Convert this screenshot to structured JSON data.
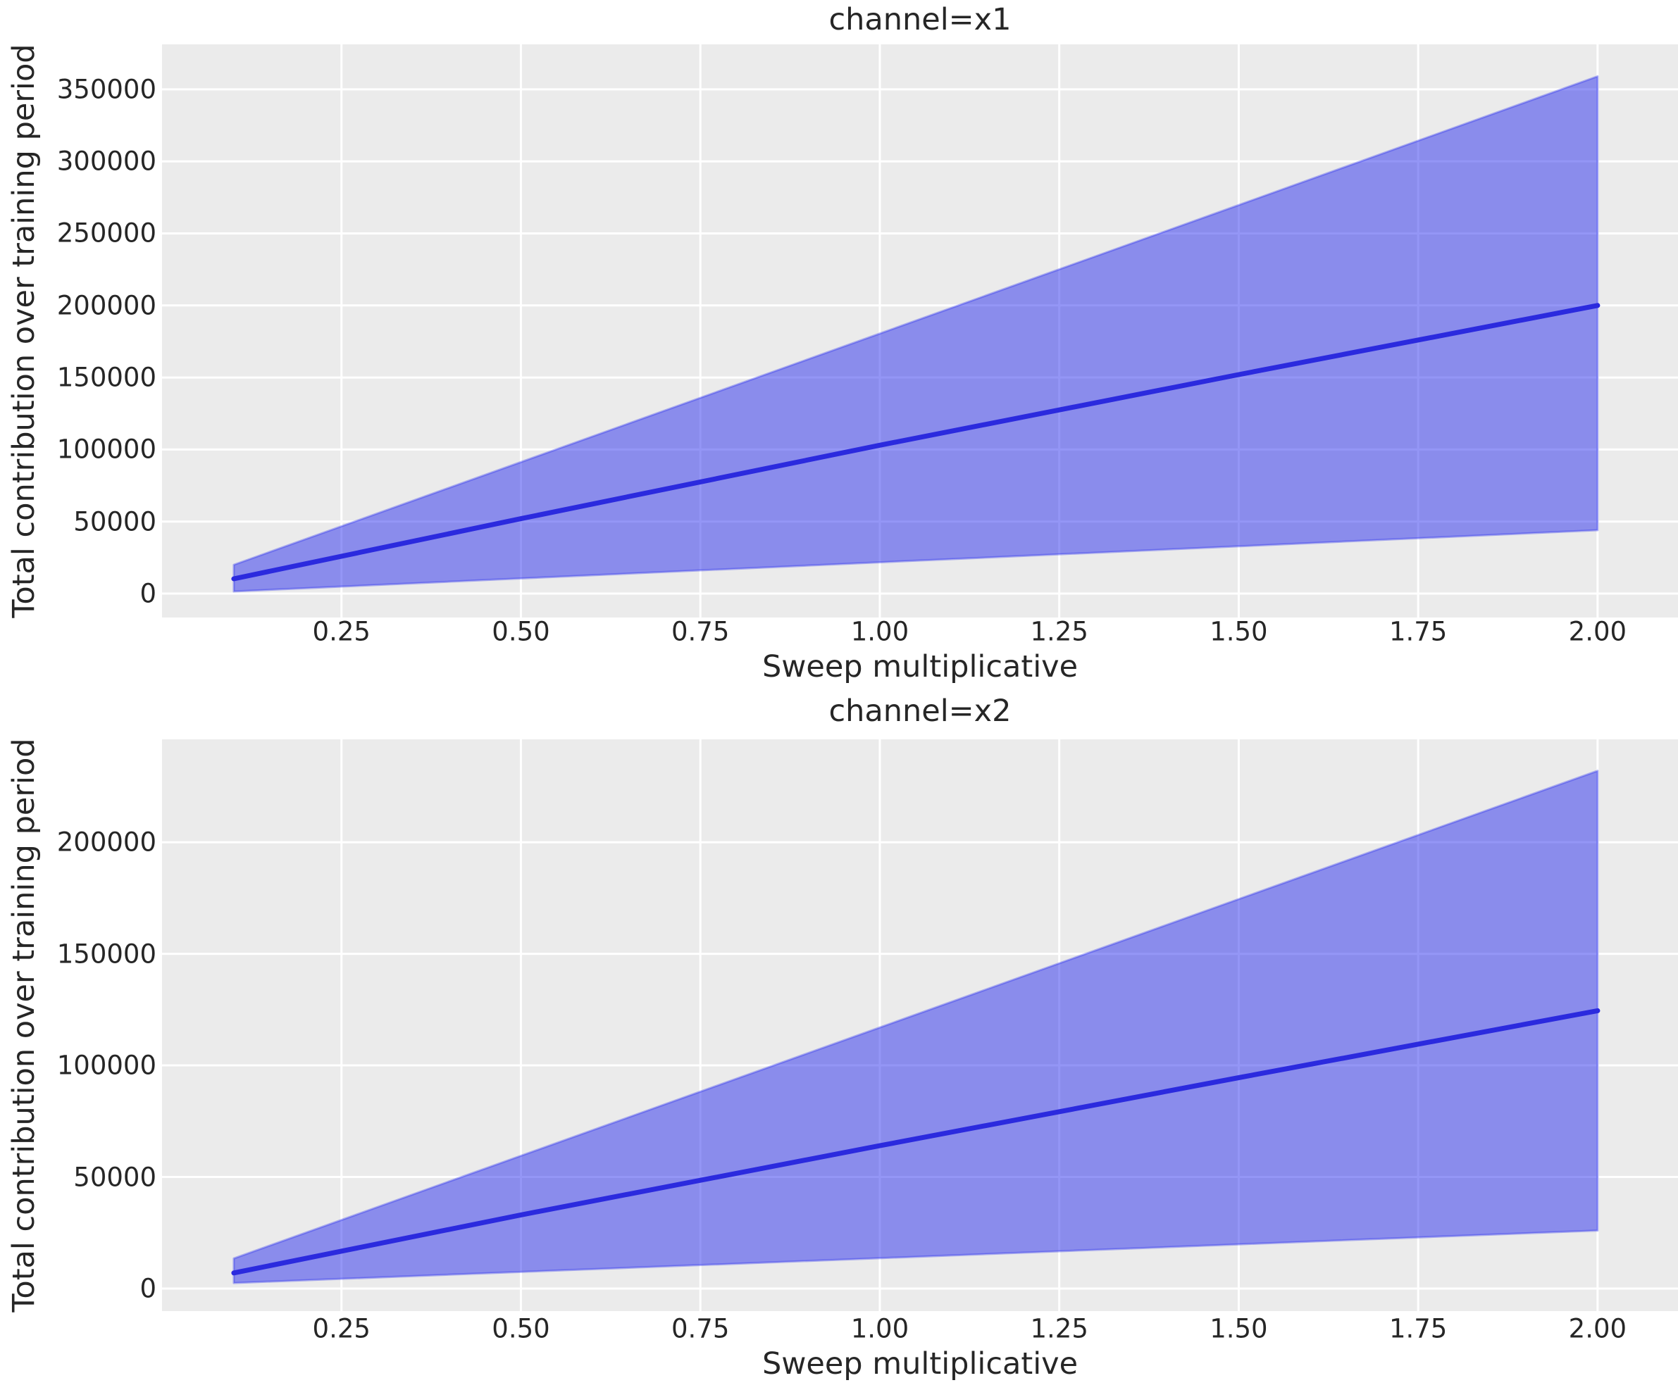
{
  "colors": {
    "figure_background": "#ffffff",
    "axes_background": "#ebebeb",
    "grid": "#ffffff",
    "line": "#2b2ade",
    "band_fill_base": "#292DED",
    "band_fill_alpha": 0.5,
    "band_edge_alpha": 0.35,
    "text": "#262626"
  },
  "chart_data": [
    {
      "type": "line",
      "title": "channel=x1",
      "xlabel": "Sweep multiplicative",
      "ylabel": "Total contribution over training period",
      "x": [
        0.1,
        0.5,
        1.0,
        1.5,
        2.0
      ],
      "series": [
        {
          "name": "mean",
          "values": [
            10300,
            52000,
            103000,
            152000,
            200000
          ]
        }
      ],
      "band": {
        "name": "confidence-interval",
        "lower": [
          1500,
          10500,
          21700,
          32800,
          44000
        ],
        "upper": [
          20000,
          91300,
          180500,
          269700,
          359000
        ]
      },
      "xlim": [
        0,
        2.112
      ],
      "ylim": [
        -16600,
        381200
      ],
      "xticks": [
        0.25,
        0.5,
        0.75,
        1.0,
        1.25,
        1.5,
        1.75,
        2.0
      ],
      "xtick_labels": [
        "0.25",
        "0.50",
        "0.75",
        "1.00",
        "1.25",
        "1.50",
        "1.75",
        "2.00"
      ],
      "yticks": [
        0,
        50000,
        100000,
        150000,
        200000,
        250000,
        300000,
        350000
      ],
      "ytick_labels": [
        "0",
        "50000",
        "100000",
        "150000",
        "200000",
        "250000",
        "300000",
        "350000"
      ],
      "grid": true,
      "legend": false
    },
    {
      "type": "line",
      "title": "channel=x2",
      "xlabel": "Sweep multiplicative",
      "ylabel": "Total contribution over training period",
      "x": [
        0.1,
        0.5,
        1.0,
        1.5,
        2.0
      ],
      "series": [
        {
          "name": "mean",
          "values": [
            7000,
            33000,
            64000,
            94500,
            124500
          ]
        }
      ],
      "band": {
        "name": "confidence-interval",
        "lower": [
          2500,
          7450,
          13600,
          19800,
          26000
        ],
        "upper": [
          13500,
          59500,
          117000,
          174500,
          232000
        ]
      },
      "xlim": [
        0,
        2.112
      ],
      "ylim": [
        -10100,
        246100
      ],
      "xticks": [
        0.25,
        0.5,
        0.75,
        1.0,
        1.25,
        1.5,
        1.75,
        2.0
      ],
      "xtick_labels": [
        "0.25",
        "0.50",
        "0.75",
        "1.00",
        "1.25",
        "1.50",
        "1.75",
        "2.00"
      ],
      "yticks": [
        0,
        50000,
        100000,
        150000,
        200000
      ],
      "ytick_labels": [
        "0",
        "50000",
        "100000",
        "150000",
        "200000"
      ],
      "grid": true,
      "legend": false
    }
  ]
}
